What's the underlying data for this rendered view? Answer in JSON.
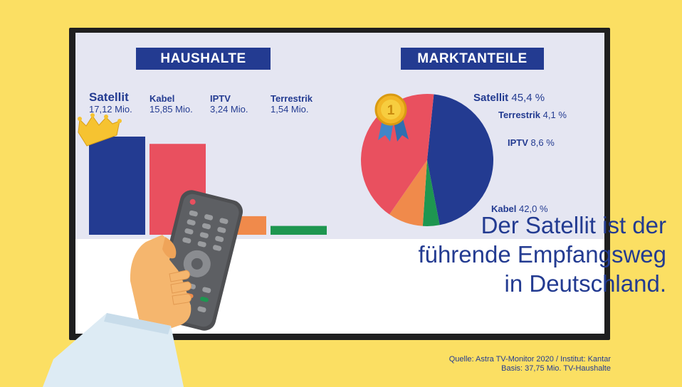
{
  "colors": {
    "background": "#FBDF63",
    "navy": "#233B91",
    "satellit": "#233B91",
    "kabel": "#E9505F",
    "iptv": "#F08A4B",
    "terrestrik": "#1E9650",
    "screen_bg": "#E5E6F2"
  },
  "icons": [
    "crown-icon",
    "medal-icon",
    "remote-control-icon",
    "hand-icon"
  ],
  "headline": {
    "lines": [
      "Der Satellit ist der",
      "führende Empfangsweg",
      "in Deutschland."
    ]
  },
  "source": {
    "line1": "Quelle: Astra TV-Monitor 2020 / Institut: Kantar",
    "line2": "Basis: 37,75 Mio. TV-Haushalte"
  },
  "chart_data": [
    {
      "type": "bar",
      "title": "HAUSHALTE",
      "categories": [
        "Satellit",
        "Kabel",
        "IPTV",
        "Terrestrik"
      ],
      "values": [
        17.12,
        15.85,
        3.24,
        1.54
      ],
      "value_labels": [
        "17,12 Mio.",
        "15,85 Mio.",
        "3,24 Mio.",
        "1,54 Mio."
      ],
      "colors": [
        "#233B91",
        "#E9505F",
        "#F08A4B",
        "#1E9650"
      ],
      "ylim": [
        0,
        17.12
      ],
      "grid": false
    },
    {
      "type": "pie",
      "title": "MARKTANTEILE",
      "categories": [
        "Satellit",
        "Terrestrik",
        "IPTV",
        "Kabel"
      ],
      "values": [
        45.4,
        4.1,
        8.6,
        42.0
      ],
      "value_labels": [
        "45,4 %",
        "4,1 %",
        "8,6 %",
        "42,0 %"
      ],
      "colors": [
        "#233B91",
        "#1E9650",
        "#F08A4B",
        "#E9505F"
      ]
    }
  ]
}
